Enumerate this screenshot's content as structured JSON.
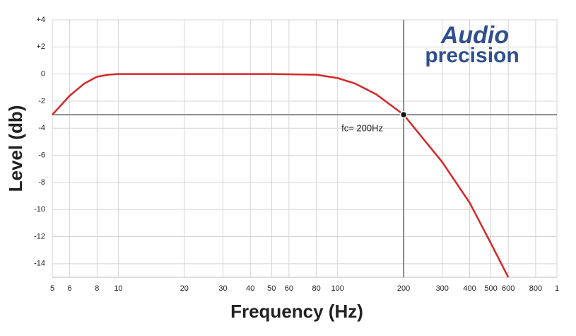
{
  "chart_data": {
    "type": "line",
    "xlabel": "Frequency (Hz)",
    "ylabel": "Level (db)",
    "x": [
      5,
      6,
      7,
      8,
      9,
      10,
      15,
      20,
      50,
      80,
      100,
      120,
      150,
      200,
      300,
      400,
      500,
      600
    ],
    "values": [
      -3,
      -1.6,
      -0.7,
      -0.2,
      -0.05,
      0,
      0,
      0,
      0,
      -0.05,
      -0.3,
      -0.7,
      -1.5,
      -3,
      -6.5,
      -9.5,
      -12.5,
      -15
    ],
    "color": "#d62728",
    "xscale": "log",
    "grid": true,
    "xlim": [
      5,
      1000
    ],
    "ylim": [
      -15,
      4
    ],
    "xticks": [
      5,
      6,
      8,
      10,
      20,
      30,
      40,
      50,
      60,
      80,
      100,
      200,
      300,
      400,
      500,
      600,
      800,
      {
        "value": 1000,
        "label": "1"
      }
    ],
    "yticks": [
      {
        "value": 4,
        "label": "+4"
      },
      {
        "value": 2,
        "label": "+2"
      },
      0,
      -2,
      -4,
      -6,
      -8,
      -10,
      -12,
      -14
    ],
    "cutoff": {
      "x": 200,
      "y": -3,
      "label": "fc= 200Hz"
    },
    "logo": [
      "Audio",
      "precision"
    ]
  }
}
